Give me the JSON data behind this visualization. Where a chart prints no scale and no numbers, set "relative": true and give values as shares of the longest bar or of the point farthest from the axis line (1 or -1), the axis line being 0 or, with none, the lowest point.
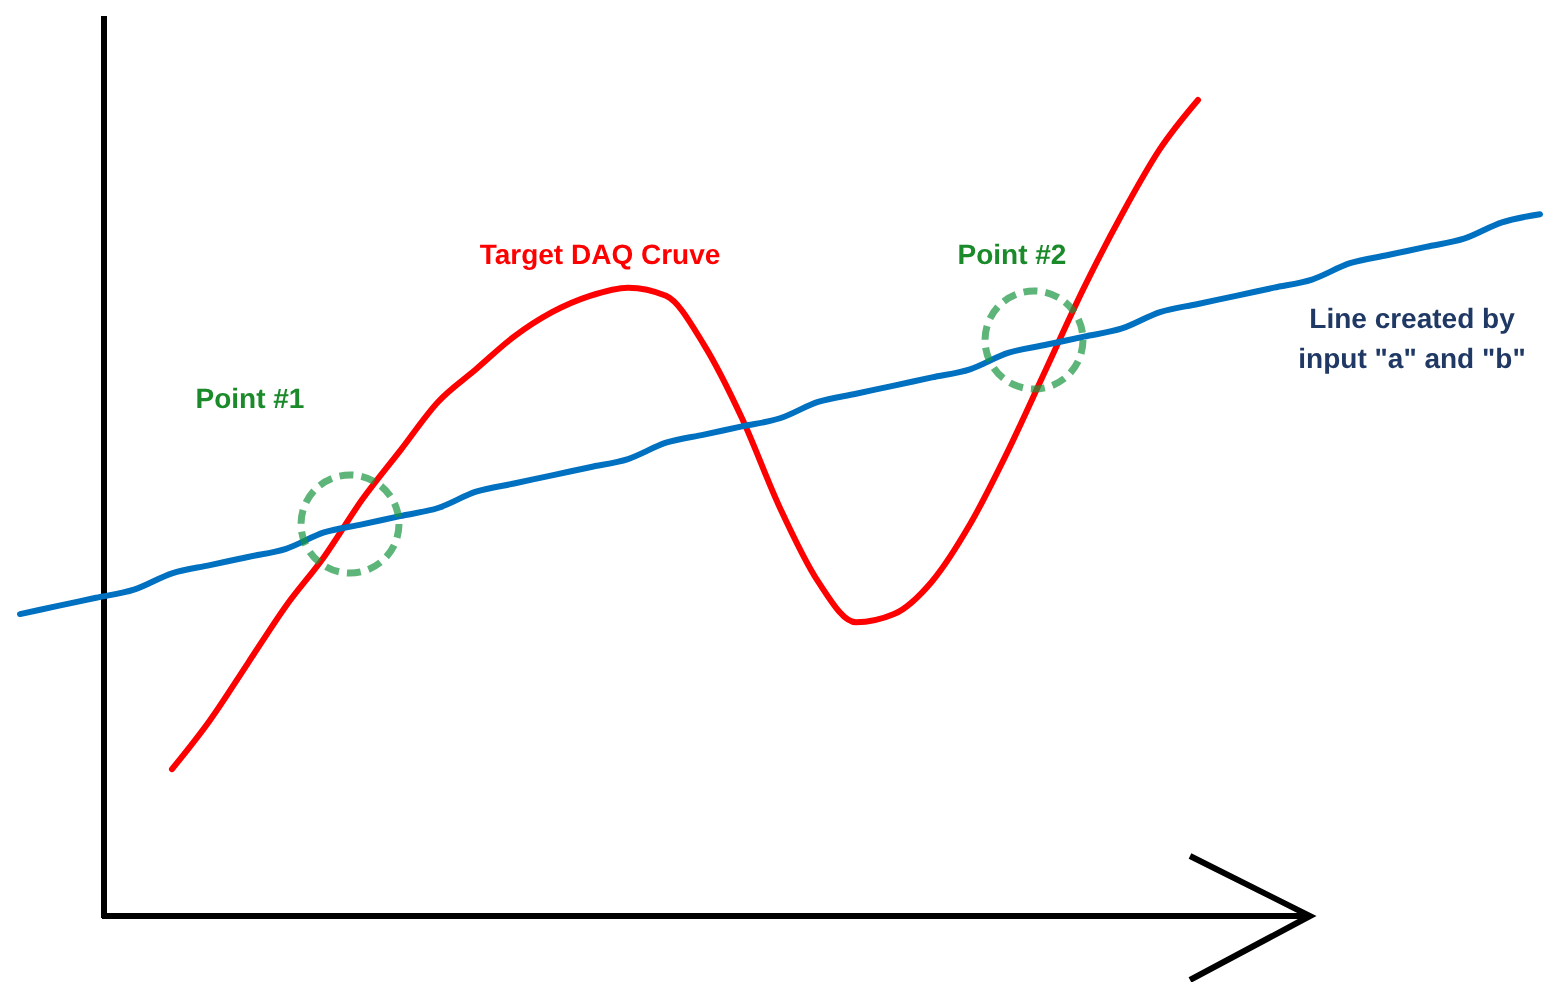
{
  "chart_data": {
    "type": "line",
    "relative": true,
    "categories": [
      null,
      null,
      null,
      null,
      null,
      null,
      null,
      null,
      null,
      null,
      null,
      null,
      null,
      null,
      null,
      null,
      null,
      null,
      null,
      null,
      null,
      null,
      null,
      null,
      null,
      null,
      null,
      null,
      null,
      null,
      null,
      null,
      null,
      null,
      null,
      null,
      null,
      null,
      null,
      null,
      null
    ],
    "series": [
      {
        "name": "Target DAQ Cruve",
        "color": "#ff0000",
        "values": [
          null,
          null,
          null,
          null,
          0.18,
          0.24,
          0.31,
          0.38,
          0.44,
          0.51,
          0.57,
          0.63,
          0.67,
          0.71,
          0.74,
          0.76,
          0.77,
          0.76,
          0.7,
          0.61,
          0.5,
          0.41,
          0.36,
          0.37,
          0.41,
          0.48,
          0.57,
          0.67,
          0.77,
          0.86,
          0.94,
          1.0,
          null,
          null,
          null,
          null,
          null,
          null,
          null,
          null,
          null
        ]
      },
      {
        "name": "Line created by input \"a\" and \"b\"",
        "color": "#0070c0",
        "values": [
          0.37,
          0.38,
          0.39,
          0.4,
          0.42,
          0.43,
          0.44,
          0.45,
          0.47,
          0.48,
          0.49,
          0.5,
          0.52,
          0.53,
          0.54,
          0.55,
          0.56,
          0.58,
          0.59,
          0.6,
          0.61,
          0.63,
          0.64,
          0.65,
          0.66,
          0.67,
          0.69,
          0.7,
          0.71,
          0.72,
          0.74,
          0.75,
          0.76,
          0.77,
          0.78,
          0.8,
          0.81,
          0.82,
          0.83,
          0.85,
          0.86
        ]
      }
    ],
    "annotations": [
      "Point #1",
      "Point #2"
    ]
  }
}
